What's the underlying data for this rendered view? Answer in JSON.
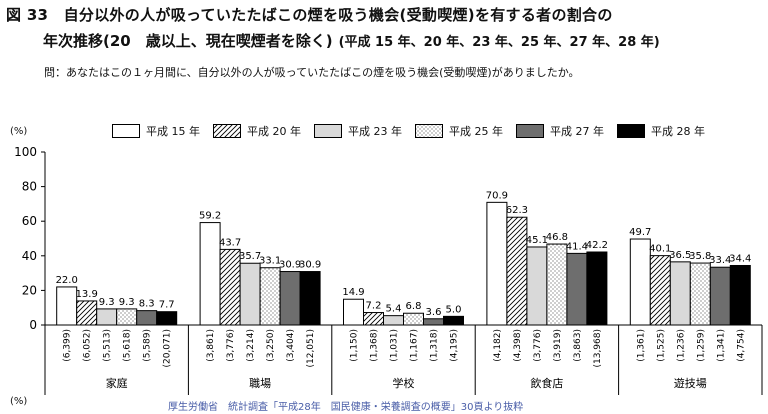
{
  "figure": {
    "title_line1": "図 33　自分以外の人が吸っていたたばこの煙を吸う機会(受動喫煙)を有する者の割合の",
    "title_line2_main": "年次推移(20　歳以上、現在喫煙者を除く)",
    "title_line2_sub": "(平成 15 年、20 年、23 年、25 年、27 年、28 年)",
    "question": "問：あなたはこの１ヶ月間に、自分以外の人が吸っていたたばこの煙を吸う機会(受動喫煙)がありましたか。",
    "ylabel_top": "(%)",
    "ylabel_bottom": "(%)",
    "source": "厚生労働省　統計調査「平成28年　国民健康・栄養調査の概要」30頁より抜粋"
  },
  "legend": [
    {
      "label": "平成 15 年",
      "pattern": "white"
    },
    {
      "label": "平成 20 年",
      "pattern": "hatch"
    },
    {
      "label": "平成 23 年",
      "pattern": "lightgray"
    },
    {
      "label": "平成 25 年",
      "pattern": "dots"
    },
    {
      "label": "平成 27 年",
      "pattern": "darkgray"
    },
    {
      "label": "平成 28 年",
      "pattern": "black"
    }
  ],
  "colors": {
    "axis": "#000000",
    "white_fill": "#ffffff",
    "lightgray_fill": "#d9d9d9",
    "darkgray_fill": "#6e6e6e",
    "black_fill": "#000000",
    "source_text": "#4a5ea8"
  },
  "chart_data": {
    "type": "bar",
    "title": "自分以外の人が吸っていたたばこの煙を吸う機会(受動喫煙)を有する者の割合の年次推移",
    "ylabel": "(%)",
    "ylim": [
      0,
      100
    ],
    "yticks": [
      0,
      20,
      40,
      60,
      80,
      100
    ],
    "categories": [
      "家庭",
      "職場",
      "学校",
      "飲食店",
      "遊技場"
    ],
    "series": [
      {
        "name": "平成 15 年",
        "values": [
          22.0,
          59.2,
          14.9,
          70.9,
          49.7
        ],
        "labels": [
          "22.0",
          "59.2",
          "14.9",
          "70.9",
          "49.7"
        ],
        "n": [
          "(6,399)",
          "(3,861)",
          "(1,150)",
          "(4,182)",
          "(1,361)"
        ]
      },
      {
        "name": "平成 20 年",
        "values": [
          13.9,
          43.7,
          7.2,
          62.3,
          40.1
        ],
        "labels": [
          "13.9",
          "43.7",
          "7.2",
          "62.3",
          "40.1"
        ],
        "n": [
          "(6,052)",
          "(3,776)",
          "(1,368)",
          "(4,398)",
          "(1,525)"
        ]
      },
      {
        "name": "平成 23 年",
        "values": [
          9.3,
          35.7,
          5.4,
          45.1,
          36.5
        ],
        "labels": [
          "9.3",
          "35.7",
          "5.4",
          "45.1",
          "36.5"
        ],
        "n": [
          "(5,513)",
          "(3,214)",
          "(1,031)",
          "(3,776)",
          "(1,236)"
        ]
      },
      {
        "name": "平成 25 年",
        "values": [
          9.3,
          33.1,
          6.8,
          46.8,
          35.8
        ],
        "labels": [
          "9.3",
          "33.1",
          "6.8",
          "46.8",
          "35.8"
        ],
        "n": [
          "(5,618)",
          "(3,250)",
          "(1,167)",
          "(3,919)",
          "(1,259)"
        ]
      },
      {
        "name": "平成 27 年",
        "values": [
          8.3,
          30.9,
          3.6,
          41.4,
          33.4
        ],
        "labels": [
          "8.3",
          "30.9",
          "3.6",
          "41.4",
          "33.4"
        ],
        "n": [
          "(5,589)",
          "(3,404)",
          "(1,318)",
          "(3,863)",
          "(1,341)"
        ]
      },
      {
        "name": "平成 28 年",
        "values": [
          7.7,
          30.9,
          5.0,
          42.2,
          34.4
        ],
        "labels": [
          "7.7",
          "30.9",
          "5.0",
          "42.2",
          "34.4"
        ],
        "n": [
          "(20,071)",
          "(12,051)",
          "(4,195)",
          "(13,968)",
          "(4,754)"
        ]
      }
    ]
  }
}
